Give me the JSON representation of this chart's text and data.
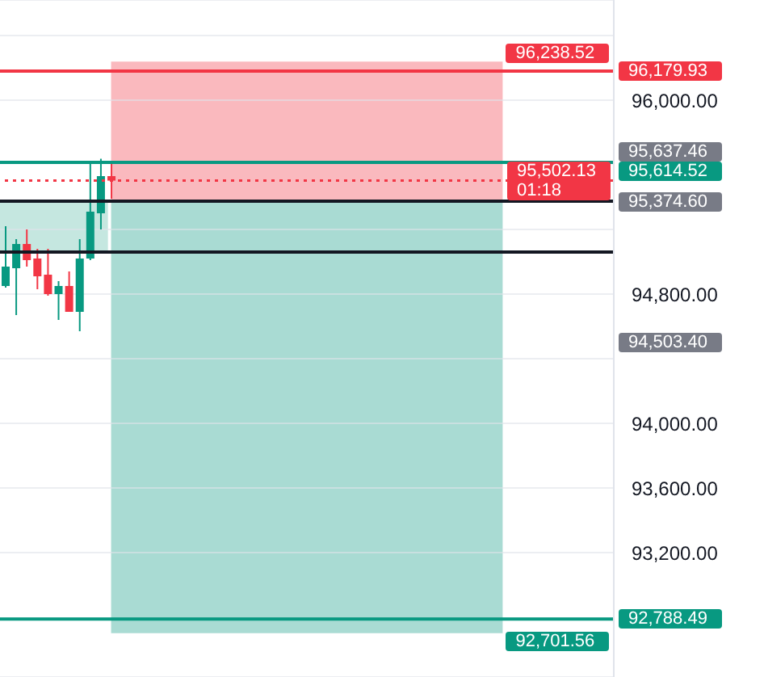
{
  "chart_data": {
    "type": "candlestick",
    "categories": [
      null,
      null,
      null,
      null,
      null,
      null,
      null,
      null,
      null,
      null,
      null,
      null,
      null,
      null,
      null,
      null,
      null,
      null,
      null,
      null,
      null,
      null,
      null,
      null,
      null,
      null,
      null,
      null,
      null,
      null,
      null,
      null,
      null,
      null,
      null,
      null,
      null,
      null,
      null,
      null,
      null,
      null,
      null,
      null,
      null,
      null,
      null,
      null,
      null,
      null,
      null,
      null,
      null,
      null,
      null,
      null,
      null,
      null
    ],
    "ohlc": [
      [
        94850,
        95220,
        94840,
        94970
      ],
      [
        94960,
        95140,
        94670,
        95110
      ],
      [
        95110,
        95200,
        94970,
        95010
      ],
      [
        95020,
        95080,
        94830,
        94910
      ],
      [
        94920,
        95080,
        94790,
        94800
      ],
      [
        94800,
        94880,
        94640,
        94850
      ],
      [
        94850,
        94940,
        94690,
        94690
      ],
      [
        94690,
        95140,
        94570,
        95020
      ],
      [
        95020,
        95620,
        95010,
        95310
      ],
      [
        95300,
        95637.46,
        95200,
        95530
      ],
      [
        95530,
        95620,
        95390,
        95502.13
      ],
      null,
      null,
      null,
      null,
      null,
      null,
      null,
      null,
      null,
      null,
      null,
      null,
      null,
      null,
      null,
      null,
      null,
      null,
      null,
      null,
      null,
      null,
      null,
      null,
      null,
      null,
      null,
      null,
      null,
      null,
      null,
      null,
      null,
      null,
      null,
      null,
      null,
      null,
      null,
      null,
      null,
      null,
      null,
      null,
      null,
      null,
      null
    ],
    "colors": [
      "#089981",
      "#089981",
      "#f23645",
      "#f23645",
      "#f23645",
      "#089981",
      "#f23645",
      "#089981",
      "#089981",
      "#089981",
      "#f23645",
      null,
      null,
      null,
      null,
      null,
      null,
      null,
      null,
      null,
      null,
      null,
      null,
      null,
      null,
      null,
      null,
      null,
      null,
      null,
      null,
      null,
      null,
      null,
      null,
      null,
      null,
      null,
      null,
      null,
      null,
      null,
      null,
      null,
      null,
      null,
      null,
      null,
      null,
      null,
      null,
      null,
      null,
      null,
      null,
      null,
      null,
      null
    ],
    "ylim": [
      92430,
      96620
    ],
    "yticks": [
      {
        "value": 96400,
        "label": null
      },
      {
        "value": 96000,
        "label": "96,000.00"
      },
      {
        "value": 95200,
        "label": null
      },
      {
        "value": 94800,
        "label": "94,800.00"
      },
      {
        "value": 94400,
        "label": null
      },
      {
        "value": 94000,
        "label": "94,000.00"
      },
      {
        "value": 93600,
        "label": "93,600.00"
      },
      {
        "value": 93200,
        "label": "93,200.00"
      }
    ],
    "grid": "y",
    "tick_labels": "y",
    "ref_lines": [
      {
        "axis": "y",
        "value": 96179.93,
        "label": "96,179.93",
        "color": "#f23645"
      },
      {
        "axis": "y",
        "value": 95614.52,
        "label": "95,614.52",
        "color": "#089981"
      },
      {
        "axis": "y",
        "value": 95502.13,
        "label": "95,502.13\n01:18",
        "color": "#f23645",
        "line_style": "dotted"
      },
      {
        "axis": "y",
        "value": 95374.6,
        "color": "#131722"
      },
      {
        "axis": "y",
        "value": 95060,
        "color": "#131722"
      },
      {
        "axis": "y",
        "value": 92788.49,
        "label": "92,788.49",
        "color": "#089981"
      }
    ],
    "bands": [
      {
        "axis": "y",
        "from": 95060,
        "to": 95374.6,
        "color": "#58b9a5"
      },
      {
        "axis": "y",
        "from": 95374.6,
        "to": 96238.52,
        "label": "96,238.52",
        "color": "#f23645"
      },
      {
        "axis": "y",
        "from": 95374.6,
        "to": 92701.56,
        "label": "92,701.56",
        "color": "#089981"
      }
    ],
    "annotations": [
      "95,637.46",
      "95,374.60",
      "94,503.40"
    ]
  }
}
